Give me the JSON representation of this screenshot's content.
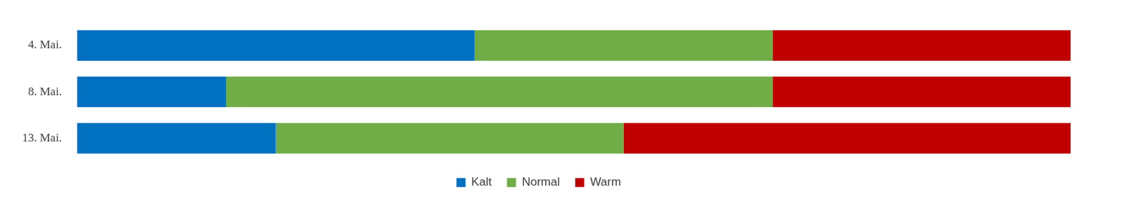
{
  "chart_data": {
    "type": "bar",
    "orientation": "horizontal",
    "stacked": true,
    "categories": [
      "4. Mai.",
      "8. Mai.",
      "13. Mai."
    ],
    "series": [
      {
        "name": "Kalt",
        "color": "#0070c0",
        "values": [
          40,
          15,
          20
        ]
      },
      {
        "name": "Normal",
        "color": "#70ad47",
        "values": [
          30,
          55,
          35
        ]
      },
      {
        "name": "Warm",
        "color": "#c00000",
        "values": [
          30,
          30,
          45
        ]
      }
    ],
    "xlim": [
      0,
      100
    ],
    "grid": false,
    "legend": "bottom",
    "tick_labels": "y"
  }
}
